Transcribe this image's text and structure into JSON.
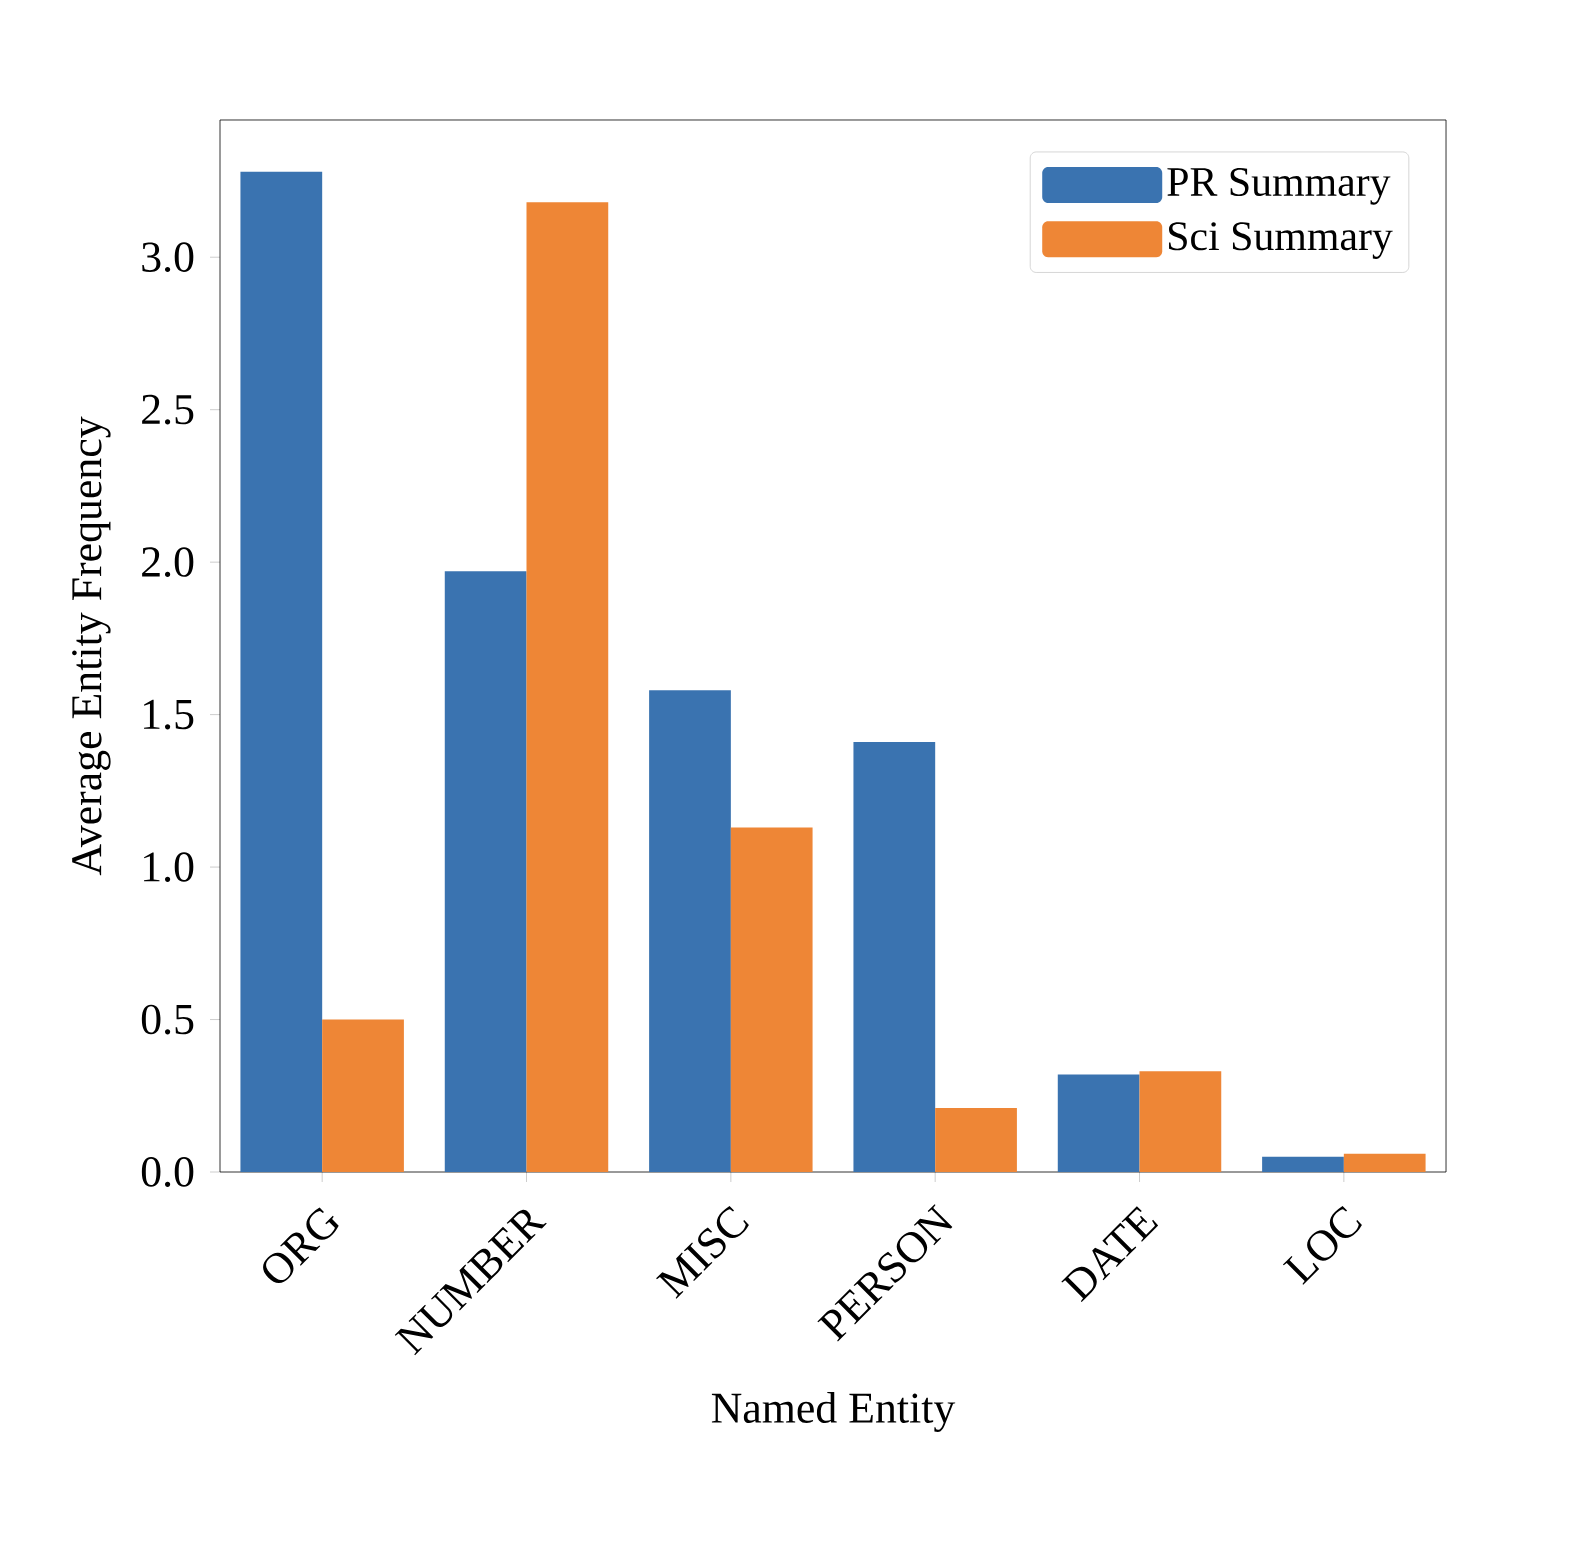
{
  "chart_data": {
    "type": "bar",
    "xlabel": "Named Entity",
    "ylabel": "Average Entity Frequency",
    "categories": [
      "ORG",
      "NUMBER",
      "MISC",
      "PERSON",
      "DATE",
      "LOC"
    ],
    "series": [
      {
        "name": "PR Summary",
        "color": "#3a73b0",
        "values": [
          3.28,
          1.97,
          1.58,
          1.41,
          0.32,
          0.05
        ]
      },
      {
        "name": "Sci Summary",
        "color": "#ee8636",
        "values": [
          0.5,
          3.18,
          1.13,
          0.21,
          0.33,
          0.06
        ]
      }
    ],
    "ylim": [
      0,
      3.45
    ],
    "yticks": [
      {
        "value": 0,
        "label": "0.0"
      },
      {
        "value": 0.5,
        "label": "0.5"
      },
      {
        "value": 1,
        "label": "1.0"
      },
      {
        "value": 1.5,
        "label": "1.5"
      },
      {
        "value": 2,
        "label": "2.0"
      },
      {
        "value": 2.5,
        "label": "2.5"
      },
      {
        "value": 3,
        "label": "3.0"
      }
    ],
    "grid": false,
    "legend": "top right"
  }
}
